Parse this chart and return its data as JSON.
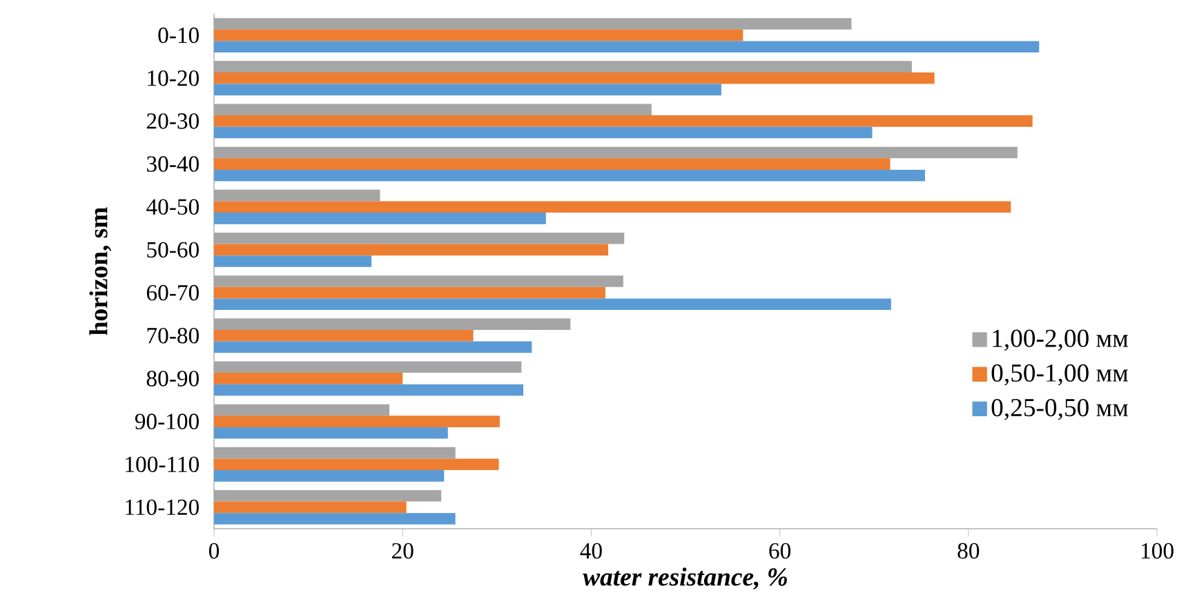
{
  "chart_data": {
    "type": "bar",
    "orientation": "horizontal",
    "xlabel": "water resistance, %",
    "ylabel": "horizon, sm",
    "categories": [
      "0-10",
      "10-20",
      "20-30",
      "30-40",
      "40-50",
      "50-60",
      "60-70",
      "70-80",
      "80-90",
      "90-100",
      "100-110",
      "110-120"
    ],
    "series": [
      {
        "name": "1,00-2,00 мм",
        "color": "#a5a5a5",
        "values": [
          67.6,
          74.0,
          46.4,
          85.2,
          17.6,
          43.5,
          43.4,
          37.8,
          32.6,
          18.6,
          25.6,
          24.1
        ]
      },
      {
        "name": "0,50-1,00 мм",
        "color": "#ed7d31",
        "values": [
          56.1,
          76.4,
          86.8,
          71.7,
          84.5,
          41.8,
          41.5,
          27.5,
          20.0,
          30.3,
          30.2,
          20.4
        ]
      },
      {
        "name": "0,25-0,50 мм",
        "color": "#5b9bd5",
        "values": [
          87.5,
          53.8,
          69.8,
          75.4,
          35.2,
          16.7,
          71.8,
          33.7,
          32.8,
          24.8,
          24.4,
          25.6
        ]
      }
    ],
    "xlim": [
      0,
      100
    ],
    "xticks": [
      0,
      20,
      40,
      60,
      80,
      100
    ],
    "legend": "right",
    "grid": false
  }
}
